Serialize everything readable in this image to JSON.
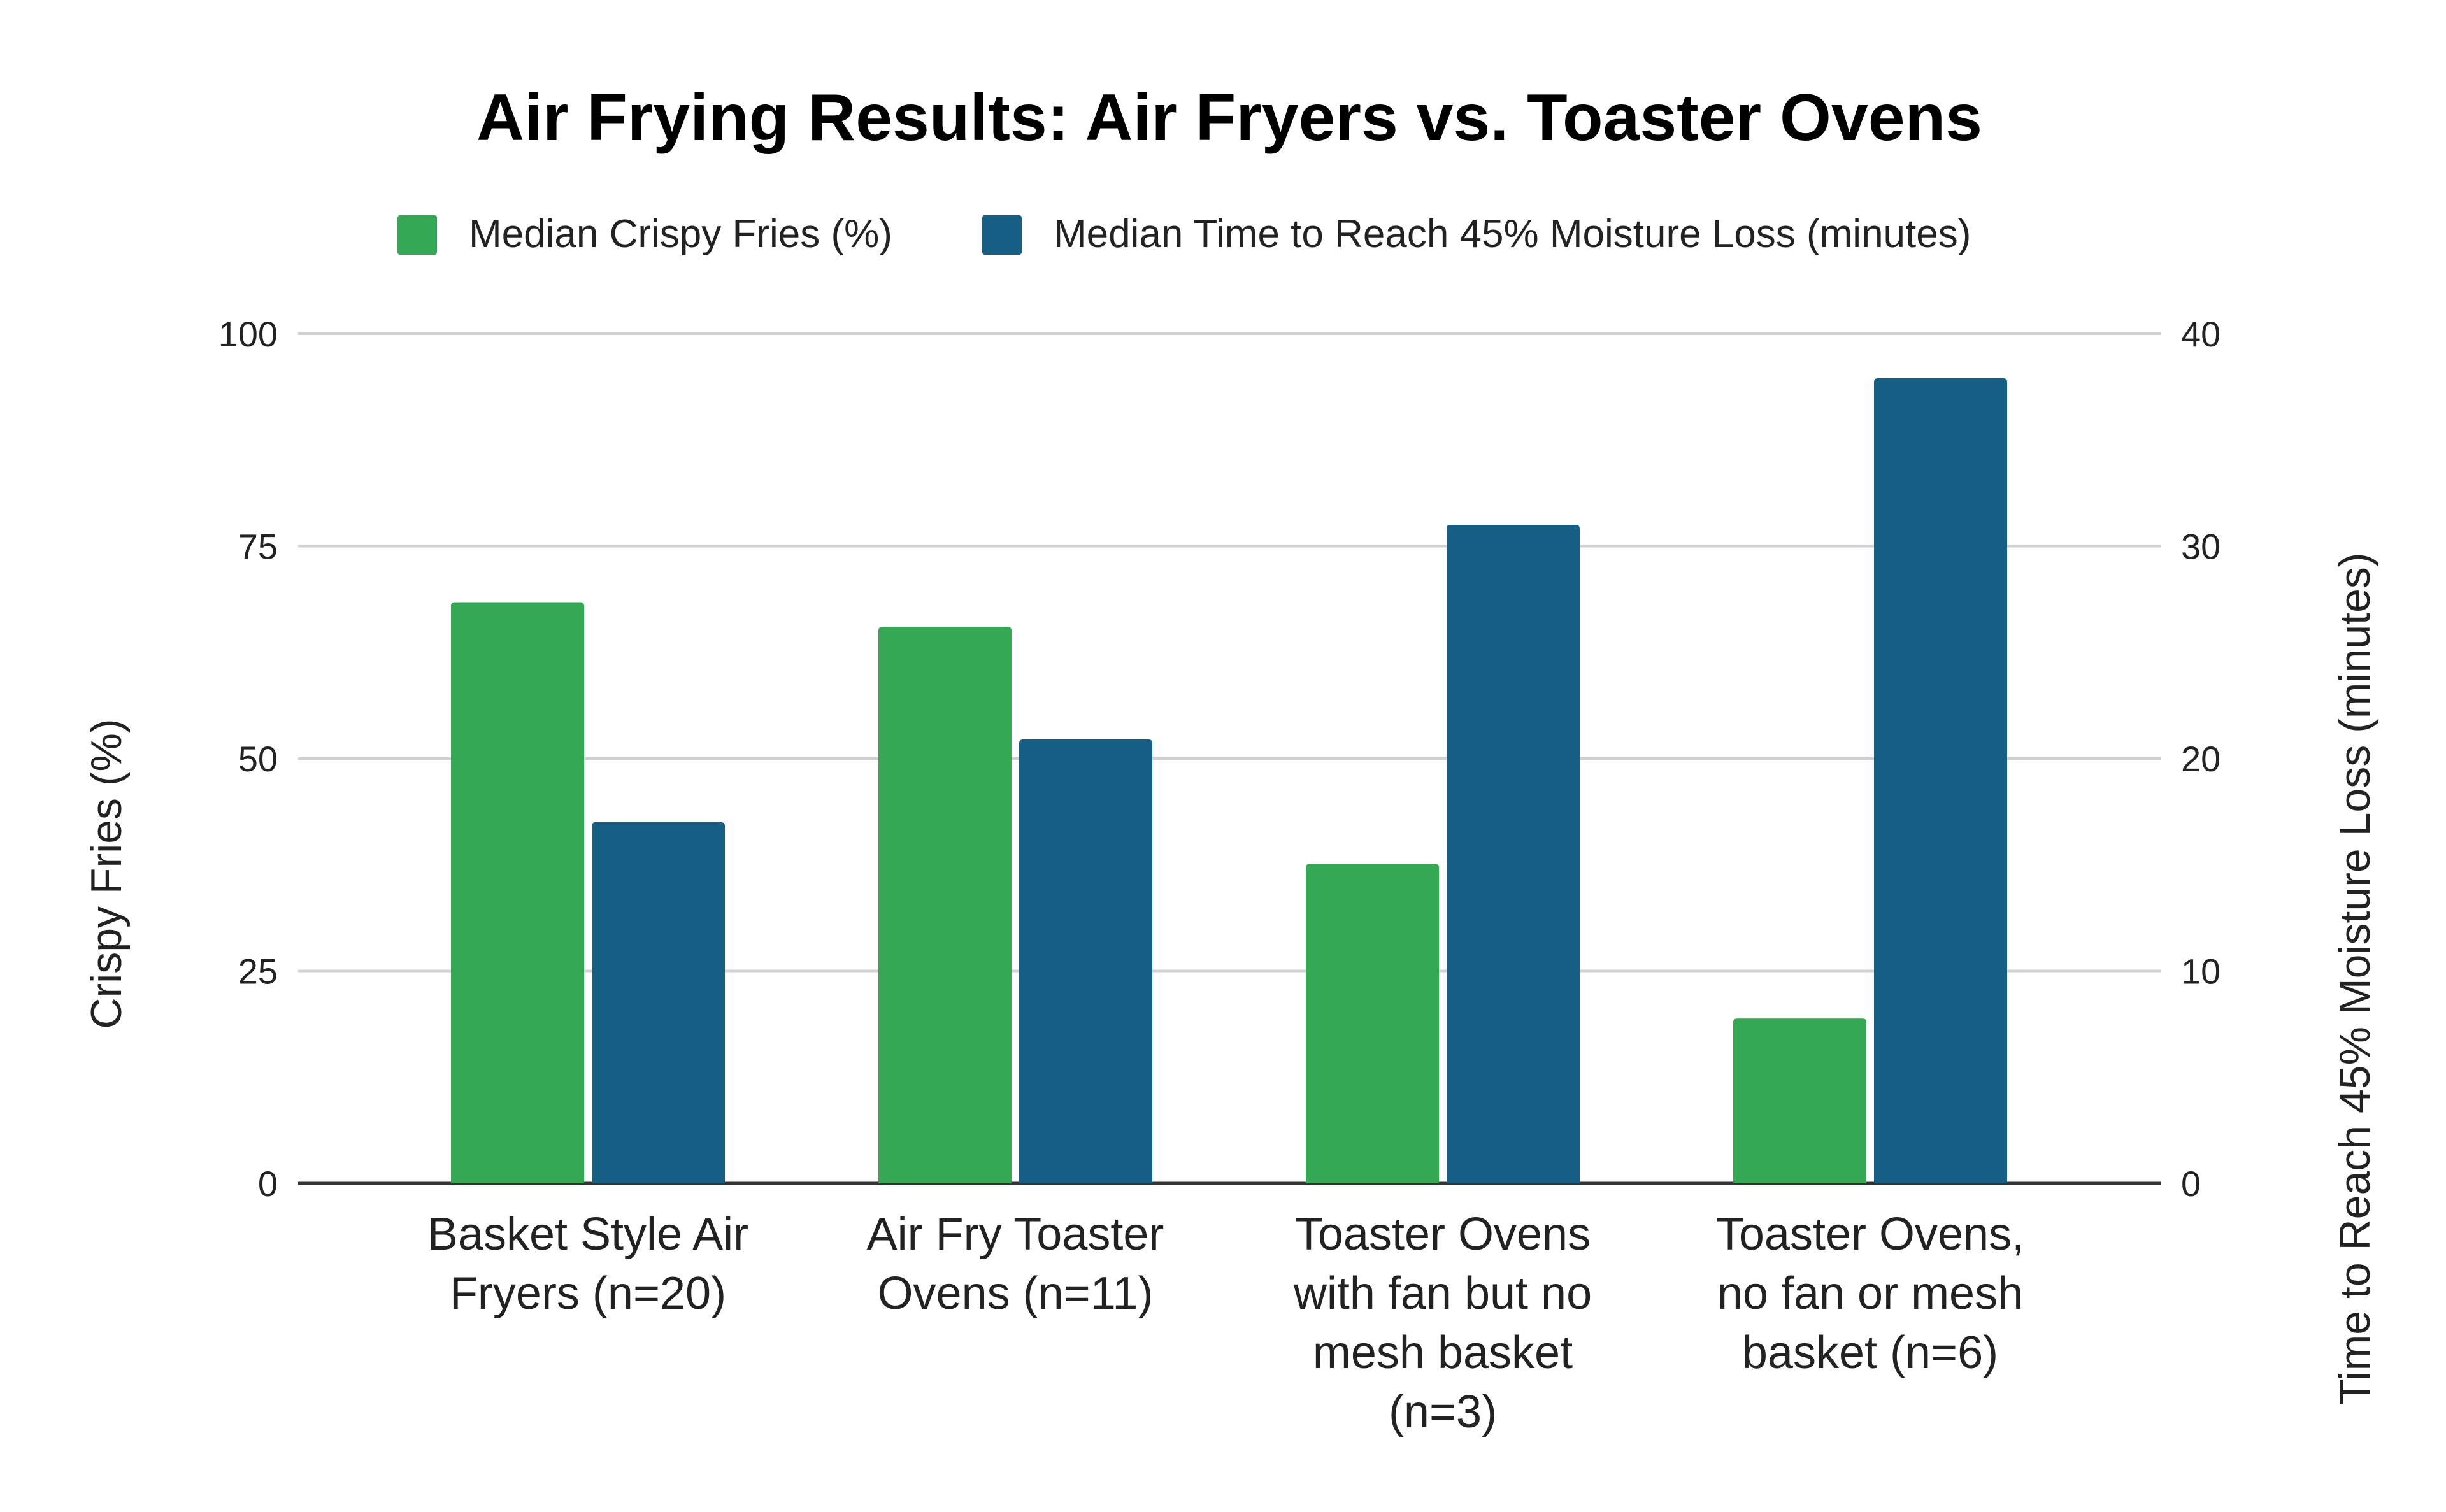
{
  "chart_data": {
    "type": "bar",
    "title": "Air Frying Results: Air Fryers vs. Toaster Ovens",
    "categories": [
      [
        "Basket Style Air",
        "Fryers (n=20)"
      ],
      [
        "Air Fry Toaster",
        "Ovens (n=11)"
      ],
      [
        "Toaster Ovens",
        "with fan but no",
        "mesh basket",
        "(n=3)"
      ],
      [
        "Toaster Ovens,",
        "no fan or mesh",
        "basket (n=6)"
      ]
    ],
    "series": [
      {
        "name": "Median Crispy Fries (%)",
        "axis": "left",
        "color": "#34a853",
        "values": [
          68.4,
          65.5,
          37.6,
          19.4
        ]
      },
      {
        "name": "Median Time to Reach 45% Moisture Loss (minutes)",
        "axis": "right",
        "color": "#165e83",
        "values": [
          17.0,
          20.9,
          31.0,
          37.9
        ]
      }
    ],
    "ylabel": "Crispy Fries (%)",
    "ylabel_right": "Time to Reach 45% Moisture Loss (minutes)",
    "ylim": [
      0,
      100
    ],
    "ylim_right": [
      0,
      40
    ],
    "yticks": [
      "0",
      "25",
      "50",
      "75",
      "100"
    ],
    "yticks_right": [
      "0",
      "10",
      "20",
      "30",
      "40"
    ],
    "grid": true,
    "legend_position": "top"
  }
}
